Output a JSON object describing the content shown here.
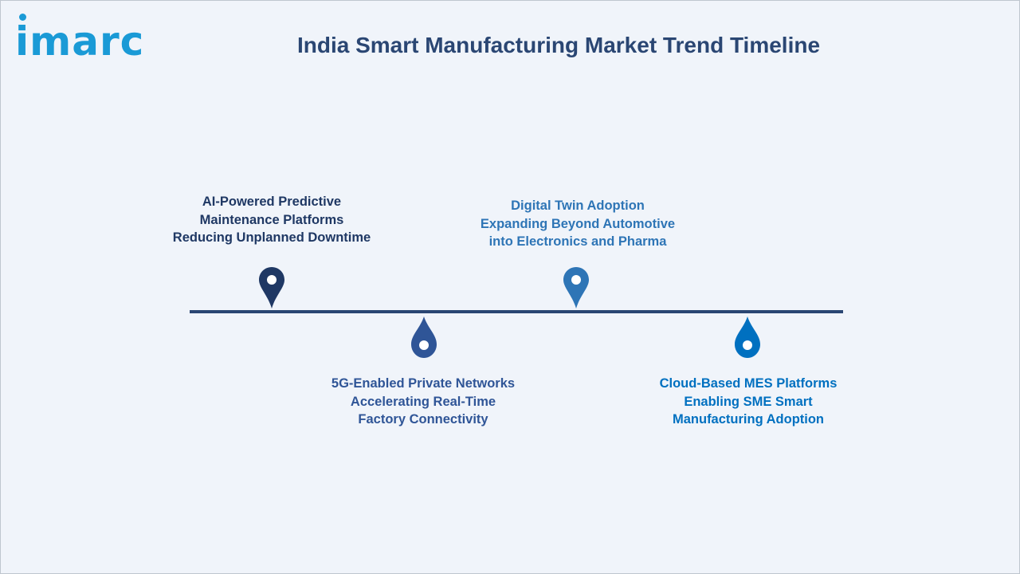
{
  "header": {
    "logo_text": "imarc",
    "title": "India Smart Manufacturing Market Trend Timeline"
  },
  "colors": {
    "background": "#f0f4fa",
    "navy": "#1f3864",
    "slate_blue": "#2f5597",
    "steel_blue": "#2e75b6",
    "light_blue": "#0070c0",
    "line": "#2a4673"
  },
  "milestones": [
    {
      "lines": [
        "AI-Powered Predictive",
        "Maintenance Platforms",
        "Reducing Unplanned Downtime"
      ],
      "position": "above",
      "pin_color": "#1f3864",
      "text_color": "#1f3864",
      "icon": "map-pin-icon"
    },
    {
      "lines": [
        "5G-Enabled Private Networks",
        "Accelerating Real-Time",
        "Factory Connectivity"
      ],
      "position": "below",
      "pin_color": "#2f5597",
      "text_color": "#2f5597",
      "icon": "drop-pin-icon"
    },
    {
      "lines": [
        "Digital Twin Adoption",
        "Expanding Beyond Automotive",
        "into Electronics and Pharma"
      ],
      "position": "above",
      "pin_color": "#2e75b6",
      "text_color": "#2e75b6",
      "icon": "map-pin-icon"
    },
    {
      "lines": [
        "Cloud-Based MES Platforms",
        "Enabling SME Smart",
        "Manufacturing Adoption"
      ],
      "position": "below",
      "pin_color": "#0070c0",
      "text_color": "#0070c0",
      "icon": "drop-pin-icon"
    }
  ]
}
